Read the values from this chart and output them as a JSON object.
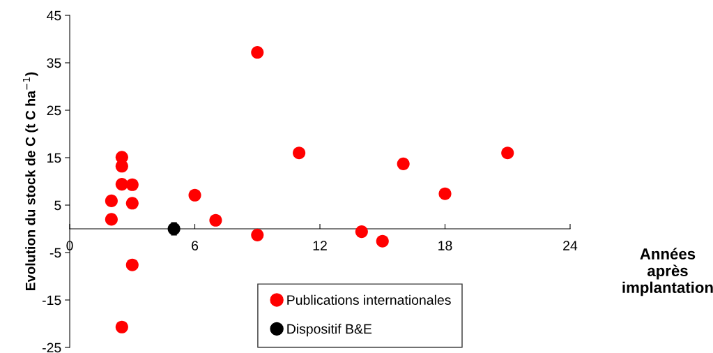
{
  "chart_data": {
    "type": "scatter",
    "xlabel": "Années\naprès\nimplantation",
    "ylabel": "Evolution du stock de C (t C ha$^{−1}$)",
    "xlim": [
      0,
      24
    ],
    "xticks": [
      0,
      6,
      12,
      18,
      24
    ],
    "ylim": [
      -25,
      45
    ],
    "yticks": [
      45,
      35,
      25,
      15,
      5,
      -5,
      -15,
      -25
    ],
    "grid": false,
    "legend": "bottom",
    "marker": "circle",
    "series": [
      {
        "name": "Publications internationales",
        "color": "#ff0000",
        "x": [
          2,
          2,
          2.5,
          2.5,
          2.5,
          3,
          3,
          3,
          2.5,
          6,
          7,
          9,
          9,
          11,
          14,
          15,
          16,
          18,
          21
        ],
        "values": [
          2.0,
          5.9,
          15.1,
          13.2,
          9.4,
          9.3,
          5.4,
          -7.6,
          -20.7,
          7.1,
          1.8,
          37.2,
          -1.3,
          16.0,
          -0.6,
          -2.6,
          13.7,
          7.4,
          16.0
        ]
      },
      {
        "name": "Dispositif B&E",
        "color": "#000000",
        "x": [
          5
        ],
        "values": [
          0
        ],
        "errors": [
          1.3
        ]
      }
    ]
  }
}
